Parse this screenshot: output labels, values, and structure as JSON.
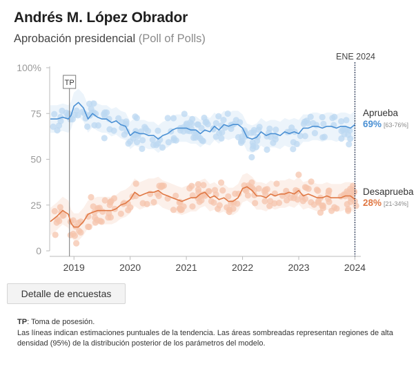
{
  "header": {
    "title": "Andrés M. López Obrador",
    "subtitle": "Aprobación presidencial",
    "subtitle_paren": "(Poll of Polls)"
  },
  "button": {
    "label": "Detalle de encuestas"
  },
  "notes": {
    "tp_key": "TP",
    "tp_text": ": Toma de posesión.",
    "line2": "Las líneas indican estimaciones puntuales de la tendencia. Las áreas sombreadas representan regiones de alta densidad (95%) de la distribución posterior de los parámetros del modelo."
  },
  "chart_data": {
    "type": "line",
    "title": "",
    "xlabel": "",
    "ylabel": "",
    "xlim": [
      2018.58,
      2024.08
    ],
    "ylim": [
      0,
      100
    ],
    "x_ticks": [
      2019,
      2020,
      2021,
      2022,
      2023,
      2024
    ],
    "y_ticks": [
      {
        "value": 0,
        "label": "0"
      },
      {
        "value": 25,
        "label": "25"
      },
      {
        "value": 50,
        "label": "50"
      },
      {
        "value": 75,
        "label": "75"
      },
      {
        "value": 100,
        "label": "100%"
      }
    ],
    "grid": false,
    "marker": {
      "x": 2024.0,
      "label": "ENE 2024"
    },
    "annotations": [
      {
        "label": "TP",
        "x": 2018.92,
        "y": 80
      }
    ],
    "series": [
      {
        "name": "Aprueba",
        "color": "#4a90d4",
        "dot_color": "#bcd8f2",
        "band_color": "#d5e6f6",
        "final_value": "69%",
        "final_range": "[63-76%]",
        "x": [
          2018.58,
          2018.7,
          2018.8,
          2018.9,
          2018.95,
          2019.0,
          2019.08,
          2019.17,
          2019.25,
          2019.33,
          2019.42,
          2019.5,
          2019.58,
          2019.67,
          2019.75,
          2019.83,
          2019.92,
          2020.0,
          2020.08,
          2020.17,
          2020.25,
          2020.33,
          2020.42,
          2020.5,
          2020.58,
          2020.67,
          2020.75,
          2020.83,
          2020.92,
          2021.0,
          2021.08,
          2021.17,
          2021.25,
          2021.33,
          2021.42,
          2021.5,
          2021.58,
          2021.67,
          2021.75,
          2021.83,
          2021.92,
          2022.0,
          2022.08,
          2022.17,
          2022.25,
          2022.33,
          2022.42,
          2022.5,
          2022.58,
          2022.67,
          2022.75,
          2022.83,
          2022.92,
          2023.0,
          2023.08,
          2023.17,
          2023.25,
          2023.33,
          2023.42,
          2023.5,
          2023.58,
          2023.67,
          2023.75,
          2023.83,
          2023.92,
          2024.0
        ],
        "values": [
          72,
          72,
          73,
          72,
          74,
          79,
          81,
          78,
          72,
          75,
          73,
          72,
          72,
          70,
          71,
          69,
          68,
          63,
          65,
          64,
          64,
          63,
          63,
          61,
          63,
          64,
          66,
          67,
          67,
          67,
          66,
          66,
          64,
          66,
          65,
          68,
          66,
          69,
          68,
          69,
          69,
          67,
          62,
          61,
          62,
          65,
          63,
          64,
          64,
          63,
          65,
          64,
          65,
          64,
          67,
          67,
          68,
          68,
          67,
          68,
          68,
          67,
          68,
          68,
          67,
          69
        ]
      },
      {
        "name": "Desaprueba",
        "color": "#e07844",
        "dot_color": "#f6c4ac",
        "band_color": "#f9ddd0",
        "final_value": "28%",
        "final_range": "[21-34%]",
        "x": [
          2018.58,
          2018.7,
          2018.8,
          2018.9,
          2018.95,
          2019.0,
          2019.08,
          2019.17,
          2019.25,
          2019.33,
          2019.42,
          2019.5,
          2019.58,
          2019.67,
          2019.75,
          2019.83,
          2019.92,
          2020.0,
          2020.08,
          2020.17,
          2020.25,
          2020.33,
          2020.42,
          2020.5,
          2020.58,
          2020.67,
          2020.75,
          2020.83,
          2020.92,
          2021.0,
          2021.08,
          2021.17,
          2021.25,
          2021.33,
          2021.42,
          2021.5,
          2021.58,
          2021.67,
          2021.75,
          2021.83,
          2021.92,
          2022.0,
          2022.08,
          2022.17,
          2022.25,
          2022.33,
          2022.42,
          2022.5,
          2022.58,
          2022.67,
          2022.75,
          2022.83,
          2022.92,
          2023.0,
          2023.08,
          2023.17,
          2023.25,
          2023.33,
          2023.42,
          2023.5,
          2023.58,
          2023.67,
          2023.75,
          2023.83,
          2023.92,
          2024.0
        ],
        "values": [
          16,
          19,
          22,
          20,
          15,
          13,
          13,
          16,
          20,
          21,
          22,
          22,
          22,
          22,
          23,
          25,
          26,
          28,
          32,
          30,
          31,
          32,
          32,
          33,
          31,
          30,
          29,
          28,
          27,
          28,
          29,
          29,
          31,
          32,
          29,
          30,
          28,
          29,
          27,
          27,
          29,
          34,
          35,
          33,
          30,
          30,
          29,
          31,
          30,
          31,
          31,
          32,
          31,
          33,
          30,
          31,
          30,
          29,
          29,
          30,
          29,
          29,
          29,
          30,
          30,
          28
        ]
      }
    ]
  }
}
